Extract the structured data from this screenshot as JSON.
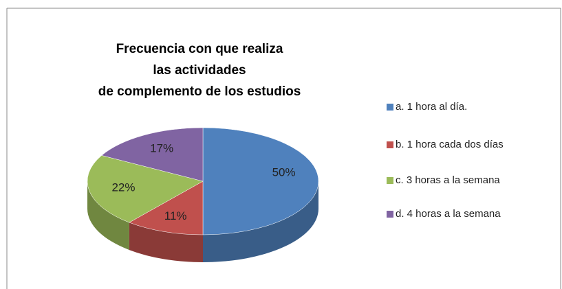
{
  "chart_data": {
    "type": "pie",
    "title": [
      "Frecuencia con que realiza",
      "las actividades",
      "de complemento de los estudios"
    ],
    "categories": [
      "a. 1 hora al día.",
      "b. 1 hora cada dos días",
      "c. 3 horas a la semana",
      "d. 4 horas a la semana"
    ],
    "values": [
      50,
      11,
      22,
      17
    ],
    "value_labels": [
      "50%",
      "11%",
      "22%",
      "17%"
    ],
    "colors": [
      "#4f81bd",
      "#c0504d",
      "#9bbb59",
      "#8064a2"
    ],
    "legend": "right"
  }
}
